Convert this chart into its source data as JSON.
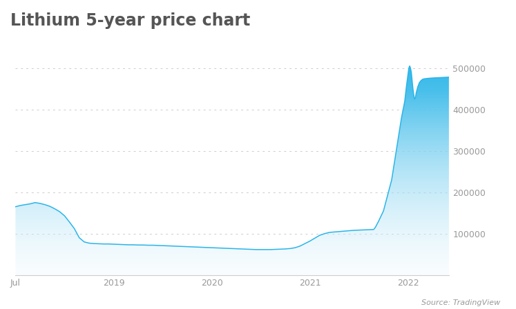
{
  "title": "Lithium 5-year price chart",
  "source_text": "Source: TradingView",
  "background_color": "#ffffff",
  "line_color": "#2ab5e8",
  "fill_color_top": "#2ab5e8",
  "fill_color_bottom": "#eaf7fd",
  "grid_color": "#cccccc",
  "tick_label_color": "#999999",
  "title_color": "#555555",
  "title_fontsize": 17,
  "tick_fontsize": 9,
  "source_fontsize": 8,
  "ylim": [
    0,
    530000
  ],
  "yticks": [
    100000,
    200000,
    300000,
    400000,
    500000
  ],
  "xtick_positions": [
    0,
    6,
    12,
    18,
    24
  ],
  "xtick_labels": [
    "Jul",
    "2019",
    "2020",
    "2021",
    "2022"
  ],
  "xlim_min": 0,
  "xlim_max": 26.5,
  "time_series": [
    [
      0.0,
      165000
    ],
    [
      0.3,
      168000
    ],
    [
      0.6,
      170000
    ],
    [
      0.9,
      172000
    ],
    [
      1.2,
      175000
    ],
    [
      1.5,
      173000
    ],
    [
      1.8,
      170000
    ],
    [
      2.1,
      166000
    ],
    [
      2.4,
      160000
    ],
    [
      2.7,
      153000
    ],
    [
      3.0,
      143000
    ],
    [
      3.3,
      128000
    ],
    [
      3.6,
      112000
    ],
    [
      3.9,
      90000
    ],
    [
      4.2,
      80000
    ],
    [
      4.5,
      77000
    ],
    [
      4.8,
      76000
    ],
    [
      5.1,
      75500
    ],
    [
      5.4,
      75000
    ],
    [
      5.7,
      75000
    ],
    [
      6.0,
      74500
    ],
    [
      6.3,
      74000
    ],
    [
      6.6,
      73500
    ],
    [
      6.9,
      73000
    ],
    [
      7.2,
      73000
    ],
    [
      7.5,
      72500
    ],
    [
      7.8,
      72500
    ],
    [
      8.1,
      72000
    ],
    [
      8.4,
      72000
    ],
    [
      8.7,
      71500
    ],
    [
      9.0,
      71000
    ],
    [
      9.3,
      70500
    ],
    [
      9.6,
      70000
    ],
    [
      9.9,
      69500
    ],
    [
      10.2,
      69000
    ],
    [
      10.5,
      68500
    ],
    [
      10.8,
      68000
    ],
    [
      11.1,
      67500
    ],
    [
      11.4,
      67000
    ],
    [
      11.7,
      66500
    ],
    [
      12.0,
      66000
    ],
    [
      12.3,
      65500
    ],
    [
      12.6,
      65000
    ],
    [
      12.9,
      64500
    ],
    [
      13.2,
      64000
    ],
    [
      13.5,
      63500
    ],
    [
      13.8,
      63000
    ],
    [
      14.1,
      62500
    ],
    [
      14.4,
      62000
    ],
    [
      14.7,
      61500
    ],
    [
      15.0,
      61500
    ],
    [
      15.3,
      61500
    ],
    [
      15.6,
      61500
    ],
    [
      15.9,
      62000
    ],
    [
      16.2,
      62500
    ],
    [
      16.5,
      63000
    ],
    [
      16.8,
      64000
    ],
    [
      17.1,
      66000
    ],
    [
      17.4,
      70000
    ],
    [
      17.7,
      76000
    ],
    [
      18.0,
      82000
    ],
    [
      18.3,
      89000
    ],
    [
      18.6,
      96000
    ],
    [
      18.9,
      100000
    ],
    [
      19.2,
      103000
    ],
    [
      19.5,
      104000
    ],
    [
      19.8,
      105000
    ],
    [
      20.1,
      106000
    ],
    [
      20.4,
      107000
    ],
    [
      20.7,
      108000
    ],
    [
      21.0,
      108500
    ],
    [
      21.3,
      109000
    ],
    [
      21.6,
      109500
    ],
    [
      21.9,
      110000
    ],
    [
      22.0,
      115000
    ],
    [
      22.2,
      130000
    ],
    [
      22.5,
      155000
    ],
    [
      22.7,
      185000
    ],
    [
      23.0,
      230000
    ],
    [
      23.2,
      280000
    ],
    [
      23.4,
      330000
    ],
    [
      23.6,
      380000
    ],
    [
      23.8,
      420000
    ],
    [
      23.9,
      455000
    ],
    [
      24.0,
      485000
    ],
    [
      24.05,
      500000
    ],
    [
      24.1,
      505000
    ],
    [
      24.15,
      500000
    ],
    [
      24.2,
      490000
    ],
    [
      24.25,
      470000
    ],
    [
      24.3,
      450000
    ],
    [
      24.35,
      435000
    ],
    [
      24.4,
      425000
    ],
    [
      24.45,
      428000
    ],
    [
      24.5,
      440000
    ],
    [
      24.6,
      455000
    ],
    [
      24.7,
      465000
    ],
    [
      24.8,
      470000
    ],
    [
      24.9,
      473000
    ],
    [
      25.0,
      474000
    ],
    [
      25.2,
      475000
    ],
    [
      25.5,
      476000
    ],
    [
      26.0,
      477000
    ],
    [
      26.5,
      478000
    ]
  ]
}
